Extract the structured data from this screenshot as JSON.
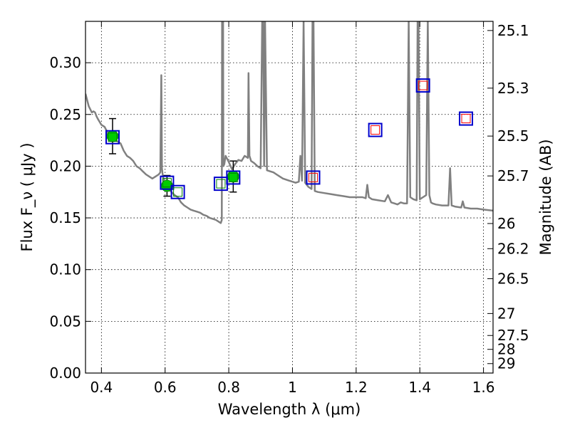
{
  "chart_data": {
    "type": "scatter",
    "title": "",
    "xlabel": "Wavelength  λ (μm)",
    "ylabel": "Flux  F_ν  ( μJy )",
    "y2label": "Magnitude (AB)",
    "xlim": [
      0.35,
      1.63
    ],
    "ylim": [
      0.0,
      0.34
    ],
    "grid": true,
    "x_ticks": [
      0.4,
      0.6,
      0.8,
      1.0,
      1.2,
      1.4,
      1.6
    ],
    "x_tick_labels": [
      "0.4",
      "0.6",
      "0.8",
      "1",
      "1.2",
      "1.4",
      "1.6"
    ],
    "y_ticks": [
      0.0,
      0.05,
      0.1,
      0.15,
      0.2,
      0.25,
      0.3
    ],
    "y_tick_labels": [
      "0.00",
      "0.05",
      "0.10",
      "0.15",
      "0.20",
      "0.25",
      "0.30"
    ],
    "y2_ticks": [
      25.1,
      25.3,
      25.5,
      25.7,
      26,
      26.2,
      26.5,
      27,
      27.5,
      28,
      29
    ],
    "y2_tick_labels": [
      "25.1",
      "25.3",
      "25.5",
      "25.7",
      "26",
      "26.2",
      "26.5",
      "27",
      "27.5",
      "28",
      "29"
    ],
    "series": [
      {
        "kind": "line",
        "color": "#808080",
        "x": [
          0.35,
          0.36,
          0.365,
          0.37,
          0.375,
          0.38,
          0.385,
          0.39,
          0.4,
          0.41,
          0.42,
          0.43,
          0.44,
          0.45,
          0.46,
          0.47,
          0.48,
          0.49,
          0.5,
          0.51,
          0.52,
          0.53,
          0.54,
          0.55,
          0.56,
          0.57,
          0.58,
          0.585,
          0.588,
          0.59,
          0.593,
          0.6,
          0.61,
          0.62,
          0.63,
          0.64,
          0.65,
          0.66,
          0.67,
          0.68,
          0.69,
          0.7,
          0.71,
          0.72,
          0.73,
          0.74,
          0.75,
          0.76,
          0.77,
          0.775,
          0.778,
          0.779,
          0.782,
          0.783,
          0.786,
          0.79,
          0.8,
          0.81,
          0.82,
          0.83,
          0.84,
          0.85,
          0.86,
          0.862,
          0.865,
          0.87,
          0.88,
          0.89,
          0.9,
          0.905,
          0.908,
          0.911,
          0.914,
          0.92,
          0.93,
          0.94,
          0.95,
          0.96,
          0.97,
          0.98,
          0.99,
          1.0,
          1.01,
          1.02,
          1.025,
          1.03,
          1.035,
          1.04,
          1.05,
          1.06,
          1.063,
          1.066,
          1.07,
          1.08,
          1.1,
          1.12,
          1.14,
          1.16,
          1.18,
          1.2,
          1.22,
          1.23,
          1.235,
          1.24,
          1.25,
          1.27,
          1.29,
          1.3,
          1.31,
          1.32,
          1.33,
          1.34,
          1.35,
          1.36,
          1.365,
          1.37,
          1.38,
          1.39,
          1.393,
          1.396,
          1.4,
          1.41,
          1.42,
          1.425,
          1.43,
          1.435,
          1.44,
          1.45,
          1.47,
          1.49,
          1.495,
          1.5,
          1.51,
          1.53,
          1.535,
          1.54,
          1.56,
          1.58,
          1.6,
          1.63
        ],
        "y": [
          0.27,
          0.258,
          0.255,
          0.252,
          0.253,
          0.252,
          0.248,
          0.245,
          0.24,
          0.238,
          0.232,
          0.228,
          0.226,
          0.224,
          0.222,
          0.215,
          0.21,
          0.208,
          0.205,
          0.2,
          0.198,
          0.195,
          0.192,
          0.19,
          0.188,
          0.19,
          0.192,
          0.194,
          0.288,
          0.198,
          0.19,
          0.182,
          0.178,
          0.175,
          0.172,
          0.17,
          0.165,
          0.162,
          0.16,
          0.158,
          0.157,
          0.156,
          0.155,
          0.153,
          0.152,
          0.15,
          0.149,
          0.148,
          0.146,
          0.145,
          0.148,
          0.34,
          0.34,
          0.2,
          0.202,
          0.21,
          0.204,
          0.197,
          0.202,
          0.206,
          0.205,
          0.21,
          0.208,
          0.29,
          0.21,
          0.205,
          0.203,
          0.2,
          0.198,
          0.34,
          0.34,
          0.2,
          0.34,
          0.196,
          0.195,
          0.194,
          0.192,
          0.19,
          0.188,
          0.187,
          0.186,
          0.185,
          0.184,
          0.185,
          0.21,
          0.186,
          0.34,
          0.184,
          0.18,
          0.178,
          0.34,
          0.34,
          0.176,
          0.175,
          0.174,
          0.173,
          0.172,
          0.171,
          0.17,
          0.17,
          0.17,
          0.169,
          0.182,
          0.17,
          0.168,
          0.167,
          0.166,
          0.172,
          0.165,
          0.164,
          0.163,
          0.165,
          0.164,
          0.164,
          0.34,
          0.17,
          0.168,
          0.167,
          0.34,
          0.34,
          0.168,
          0.17,
          0.172,
          0.34,
          0.172,
          0.165,
          0.164,
          0.163,
          0.162,
          0.162,
          0.198,
          0.162,
          0.161,
          0.16,
          0.166,
          0.16,
          0.159,
          0.159,
          0.158,
          0.157
        ]
      },
      {
        "kind": "points",
        "marker": "circle",
        "color": "#00cc00",
        "points": [
          {
            "x": 0.435,
            "y": 0.229,
            "err": 0.017
          },
          {
            "x": 0.606,
            "y": 0.181,
            "err": 0.01
          },
          {
            "x": 0.814,
            "y": 0.19,
            "err": 0.015
          }
        ]
      },
      {
        "kind": "points",
        "marker": "square",
        "color": "#0000cc",
        "inner_color": "#008000",
        "points": [
          {
            "x": 0.435,
            "y": 0.228
          },
          {
            "x": 0.606,
            "y": 0.184
          },
          {
            "x": 0.64,
            "y": 0.175
          },
          {
            "x": 0.775,
            "y": 0.183
          },
          {
            "x": 0.814,
            "y": 0.189
          }
        ]
      },
      {
        "kind": "points",
        "marker": "square",
        "color": "#0000cc",
        "inner_color": "#ff0000",
        "points": [
          {
            "x": 1.065,
            "y": 0.189
          },
          {
            "x": 1.26,
            "y": 0.235
          },
          {
            "x": 1.41,
            "y": 0.278
          },
          {
            "x": 1.545,
            "y": 0.246
          }
        ]
      }
    ]
  }
}
